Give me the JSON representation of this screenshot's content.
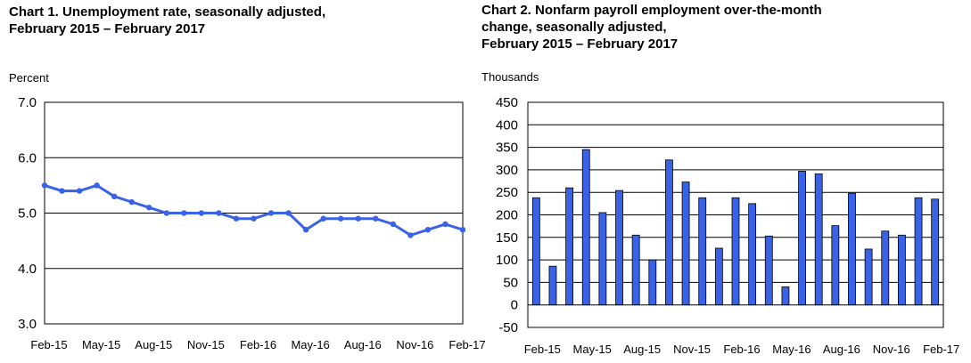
{
  "chart_data": [
    {
      "type": "line",
      "title": "Chart 1. Unemployment rate, seasonally adjusted,\nFebruary 2015 – February 2017",
      "ylabel": "Percent",
      "ylim": [
        3.0,
        7.0
      ],
      "yticks": [
        "3.0",
        "4.0",
        "5.0",
        "6.0",
        "7.0"
      ],
      "xtick_labels": [
        "Feb-15",
        "May-15",
        "Aug-15",
        "Nov-15",
        "Feb-16",
        "May-16",
        "Aug-16",
        "Nov-16",
        "Feb-17"
      ],
      "series_color": "#3a62e6",
      "grid": "horizontal",
      "values": [
        5.5,
        5.4,
        5.4,
        5.5,
        5.3,
        5.2,
        5.1,
        5.0,
        5.0,
        5.0,
        5.0,
        4.9,
        4.9,
        5.0,
        5.0,
        4.7,
        4.9,
        4.9,
        4.9,
        4.9,
        4.8,
        4.6,
        4.7,
        4.8,
        4.7
      ]
    },
    {
      "type": "bar",
      "title": "Chart 2. Nonfarm payroll employment over-the-month\nchange, seasonally adjusted,\nFebruary 2015 – February 2017",
      "ylabel": "Thousands",
      "ylim": [
        -50,
        450
      ],
      "yticks": [
        "-50",
        "0",
        "50",
        "100",
        "150",
        "200",
        "250",
        "300",
        "350",
        "400",
        "450"
      ],
      "xtick_labels": [
        "Feb-15",
        "May-15",
        "Aug-15",
        "Nov-15",
        "Feb-16",
        "May-16",
        "Aug-16",
        "Nov-16",
        "Feb-17"
      ],
      "series_color": "#3a62e6",
      "grid": "horizontal",
      "values": [
        238,
        86,
        260,
        345,
        205,
        254,
        155,
        100,
        322,
        273,
        238,
        126,
        238,
        225,
        153,
        40,
        297,
        291,
        176,
        248,
        124,
        164,
        155,
        238,
        235
      ]
    }
  ]
}
